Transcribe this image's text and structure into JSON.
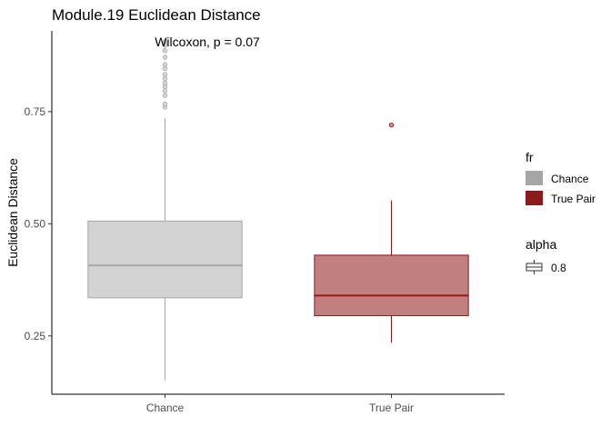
{
  "chart_data": {
    "type": "boxplot",
    "title": "Module.19 Euclidean Distance",
    "annotation": "Wilcoxon, p = 0.07",
    "xlabel": "",
    "ylabel": "Euclidean Distance",
    "ylim": [
      0.12,
      0.93
    ],
    "yticks": [
      0.25,
      0.5,
      0.75
    ],
    "ytick_labels": [
      "0.25",
      "0.50",
      "0.75"
    ],
    "grid": false,
    "categories": [
      "Chance",
      "True Pair"
    ],
    "series": [
      {
        "name": "Chance",
        "fill": "#d3d3d3",
        "line": "#a6a6a6",
        "median_color": "#a6a6a6",
        "whisker_low": 0.15,
        "q1": 0.335,
        "median": 0.407,
        "q3": 0.506,
        "whisker_high": 0.735,
        "outliers": [
          0.76,
          0.767,
          0.786,
          0.797,
          0.806,
          0.814,
          0.824,
          0.833,
          0.846,
          0.855,
          0.871,
          0.886,
          0.898,
          0.906
        ]
      },
      {
        "name": "True Pair",
        "fill": "#c17f7f",
        "line": "#8b1a1a",
        "median_color": "#9b1515",
        "whisker_low": 0.235,
        "q1": 0.295,
        "median": 0.34,
        "q3": 0.43,
        "whisker_high": 0.552,
        "outliers": [
          0.72
        ]
      }
    ],
    "legend": {
      "position": "right",
      "fill_title": "fr",
      "fill_items": [
        {
          "label": "Chance",
          "color": "#a6a6a6"
        },
        {
          "label": "True Pair",
          "color": "#8b1a1a"
        }
      ],
      "alpha_title": "alpha",
      "alpha_items": [
        {
          "label": "0.8"
        }
      ]
    }
  }
}
